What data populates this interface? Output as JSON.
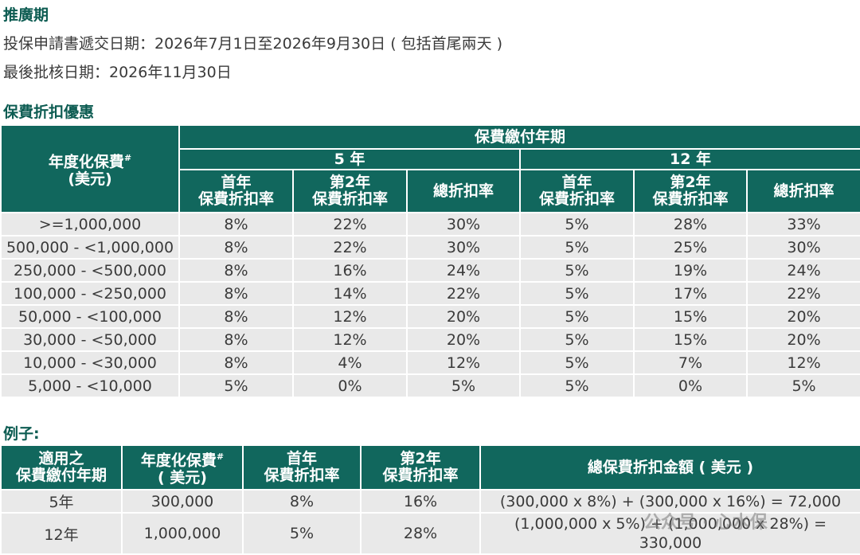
{
  "promo": {
    "heading": "推廣期",
    "application_line": "投保申請書遞交日期：2026年7月1日至2026年9月30日 ( 包括首尾兩天 )",
    "approval_line": "最後批核日期：2026年11月30日"
  },
  "discount": {
    "heading": "保費折扣優惠",
    "header": {
      "premium_col_line1": "年度化保費",
      "premium_col_sup": "#",
      "premium_col_line2": "(美元)",
      "payment_term": "保費繳付年期",
      "term_5": "5 年",
      "term_12": "12 年",
      "first_year_line1": "首年",
      "first_year_line2": "保費折扣率",
      "second_year_line1": "第2年",
      "second_year_line2": "保費折扣率",
      "total": "總折扣率"
    },
    "rows": [
      {
        "range": ">=1,000,000",
        "y5_first": "8%",
        "y5_second": "22%",
        "y5_total": "30%",
        "y12_first": "5%",
        "y12_second": "28%",
        "y12_total": "33%"
      },
      {
        "range": "500,000 - <1,000,000",
        "y5_first": "8%",
        "y5_second": "22%",
        "y5_total": "30%",
        "y12_first": "5%",
        "y12_second": "25%",
        "y12_total": "30%"
      },
      {
        "range": "250,000 - <500,000",
        "y5_first": "8%",
        "y5_second": "16%",
        "y5_total": "24%",
        "y12_first": "5%",
        "y12_second": "19%",
        "y12_total": "24%"
      },
      {
        "range": "100,000 - <250,000",
        "y5_first": "8%",
        "y5_second": "14%",
        "y5_total": "22%",
        "y12_first": "5%",
        "y12_second": "17%",
        "y12_total": "22%"
      },
      {
        "range": "50,000 - <100,000",
        "y5_first": "8%",
        "y5_second": "12%",
        "y5_total": "20%",
        "y12_first": "5%",
        "y12_second": "15%",
        "y12_total": "20%"
      },
      {
        "range": "30,000 - <50,000",
        "y5_first": "8%",
        "y5_second": "12%",
        "y5_total": "20%",
        "y12_first": "5%",
        "y12_second": "15%",
        "y12_total": "20%"
      },
      {
        "range": "10,000 - <30,000",
        "y5_first": "8%",
        "y5_second": "4%",
        "y5_total": "12%",
        "y12_first": "5%",
        "y12_second": "7%",
        "y12_total": "12%"
      },
      {
        "range": "5,000 - <10,000",
        "y5_first": "5%",
        "y5_second": "0%",
        "y5_total": "5%",
        "y12_first": "5%",
        "y12_second": "0%",
        "y12_total": "5%"
      }
    ]
  },
  "example": {
    "heading": "例子:",
    "header": {
      "term_line1": "適用之",
      "term_line2": "保費繳付年期",
      "premium_line1": "年度化保費",
      "premium_sup": "#",
      "premium_line2": "( 美元)",
      "first_line1": "首年",
      "first_line2": "保費折扣率",
      "second_line1": "第2年",
      "second_line2": "保費折扣率",
      "total_amount": "總保費折扣金額 ( 美元 )"
    },
    "rows": [
      {
        "term": "5年",
        "premium": "300,000",
        "first": "8%",
        "second": "16%",
        "total": "(300,000 x 8%) + (300,000 x 16%) = 72,000"
      },
      {
        "term": "12年",
        "premium": "1,000,000",
        "first": "5%",
        "second": "28%",
        "total": "(1,000,000 x 5%) + (1,000,000 x 28%) = 330,000"
      }
    ]
  },
  "watermark": "公众号 · 心水保",
  "colors": {
    "header_bg": "#11675d",
    "heading_text": "#0d5c52",
    "cell_bg": "#e9e9e9"
  }
}
